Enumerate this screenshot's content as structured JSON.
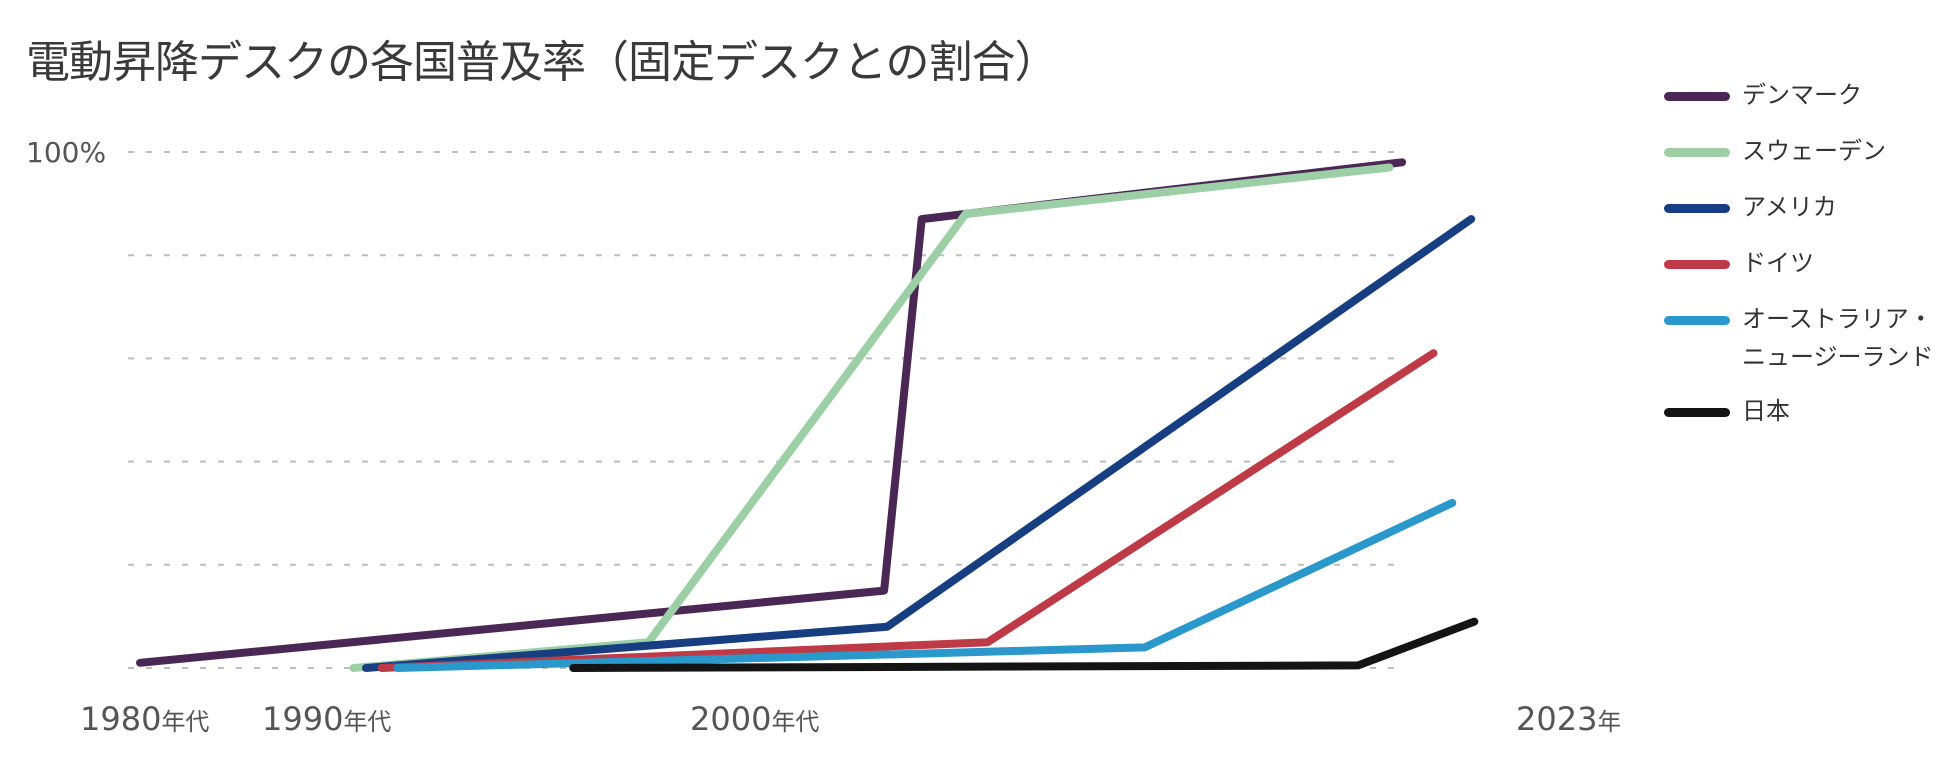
{
  "chart_data": {
    "type": "line",
    "title": "電動昇降デスクの各国普及率（固定デスクとの割合）",
    "xlabel": "",
    "ylabel": "",
    "ylim": [
      0,
      100
    ],
    "xlim": [
      1980,
      2023
    ],
    "y_ticks": [
      {
        "value": 100,
        "label": "100%"
      }
    ],
    "x_ticks": [
      {
        "value": 1980,
        "label": "1980",
        "suffix": "年代"
      },
      {
        "value": 1990,
        "label": "1990",
        "suffix": "年代"
      },
      {
        "value": 2000,
        "label": "2000",
        "suffix": "年代"
      },
      {
        "value": 2023,
        "label": "2023",
        "suffix": "年"
      }
    ],
    "grid": true,
    "legend_position": "right",
    "series": [
      {
        "name": "デンマーク",
        "color": "#4b2755",
        "x": [
          1980,
          2003.7,
          2004.9,
          2020.2
        ],
        "y": [
          1,
          15,
          87,
          98
        ]
      },
      {
        "name": "スウェーデン",
        "color": "#9dcfa6",
        "x": [
          1986.8,
          1996.2,
          2006.3,
          2019.8
        ],
        "y": [
          0,
          5,
          88,
          97
        ]
      },
      {
        "name": "アメリカ",
        "color": "#173e80",
        "x": [
          1987.2,
          2003.8,
          2022.4
        ],
        "y": [
          0,
          8,
          87
        ]
      },
      {
        "name": "ドイツ",
        "color": "#bd3a46",
        "x": [
          1987.7,
          2007.0,
          2021.2
        ],
        "y": [
          0,
          5,
          61
        ]
      },
      {
        "name": "オーストラリア・\nニュージーランド",
        "color": "#2b98cc",
        "x": [
          1988.2,
          2012.0,
          2021.8
        ],
        "y": [
          0,
          4,
          32
        ]
      },
      {
        "name": "日本",
        "color": "#141414",
        "x": [
          1993.8,
          2018.8,
          2022.5
        ],
        "y": [
          0,
          0.5,
          9
        ]
      }
    ]
  }
}
